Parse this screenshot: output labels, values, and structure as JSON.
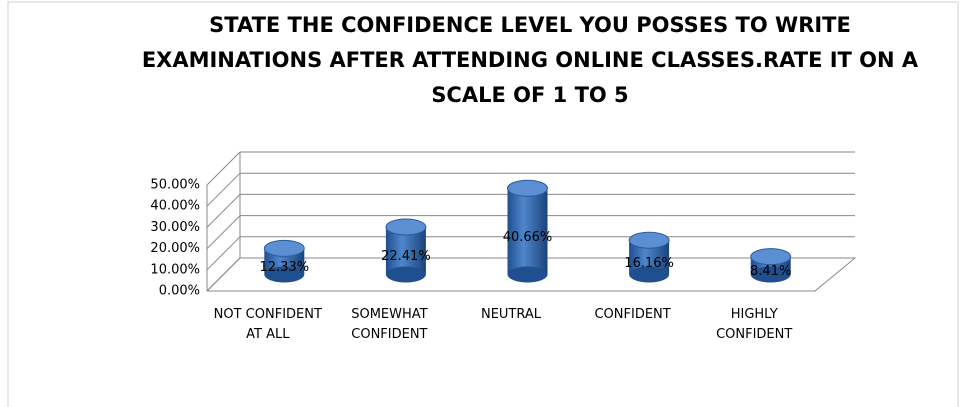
{
  "chart_data": {
    "type": "bar3d",
    "title": "STATE THE CONFIDENCE LEVEL YOU POSSES TO WRITE EXAMINATIONS AFTER ATTENDING ONLINE CLASSES.RATE IT ON A SCALE OF 1 TO 5",
    "categories": [
      "NOT CONFIDENT AT ALL",
      "SOMEWHAT CONFIDENT",
      "NEUTRAL",
      "CONFIDENT",
      "HIGHLY CONFIDENT"
    ],
    "values": [
      12.33,
      22.41,
      40.66,
      16.16,
      8.41
    ],
    "value_labels": [
      "12.33%",
      "22.41%",
      "40.66%",
      "16.16%",
      "8.41%"
    ],
    "color": "#3a6fb5",
    "ylim": [
      0,
      50
    ],
    "yticks": [
      {
        "value": 0,
        "label": "0.00%"
      },
      {
        "value": 10,
        "label": "10.00%"
      },
      {
        "value": 20,
        "label": "20.00%"
      },
      {
        "value": 30,
        "label": "30.00%"
      },
      {
        "value": 40,
        "label": "40.00%"
      },
      {
        "value": 50,
        "label": "50.00%"
      }
    ],
    "grid": true
  }
}
